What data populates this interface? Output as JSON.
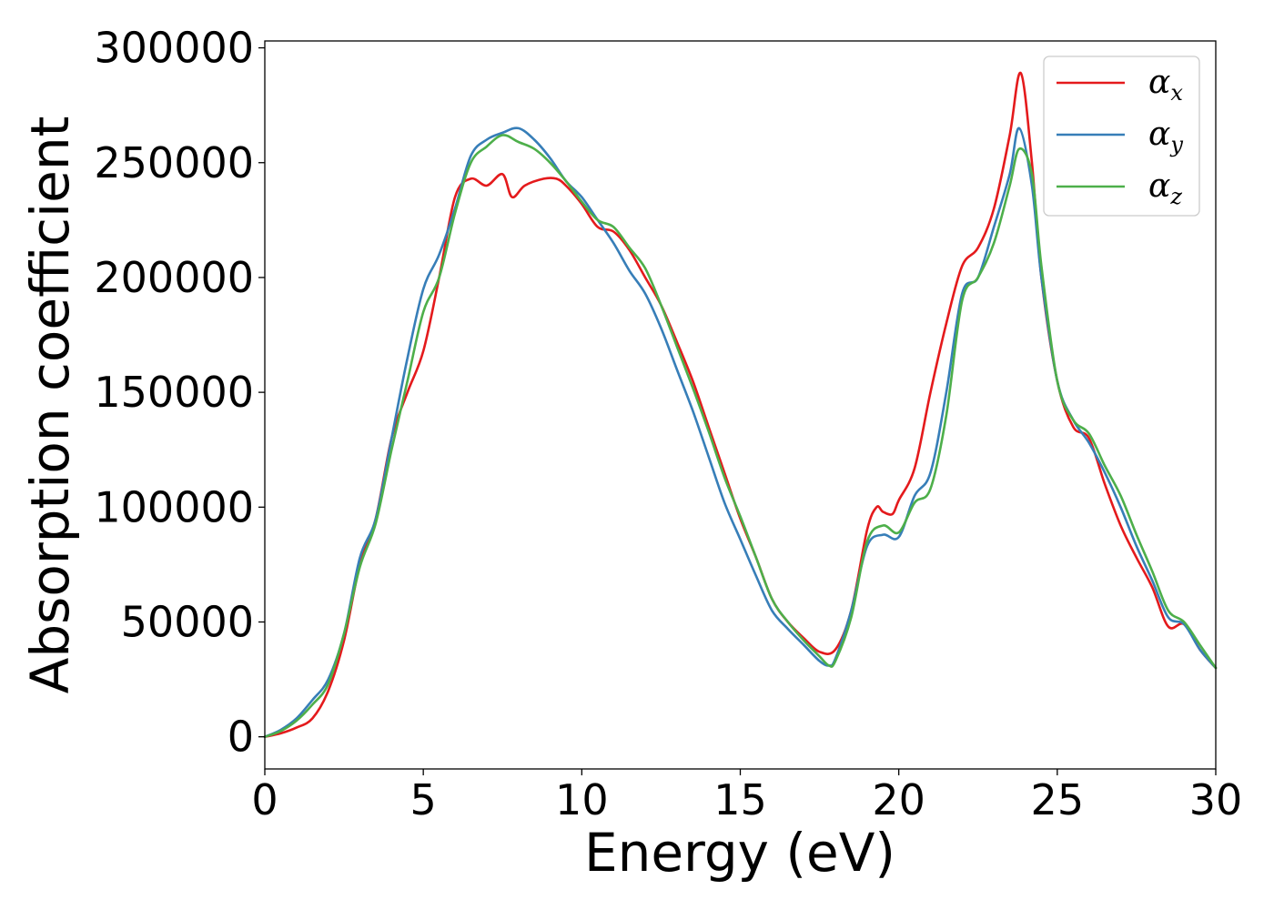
{
  "chart_data": {
    "type": "line",
    "xlabel": "Energy (eV)",
    "ylabel": "Absorption coefficient",
    "xlim": [
      0,
      30
    ],
    "ylim": [
      -14000,
      303000
    ],
    "xticks": [
      0,
      5,
      10,
      15,
      20,
      25,
      30
    ],
    "yticks": [
      0,
      50000,
      100000,
      150000,
      200000,
      250000,
      300000
    ],
    "grid": false,
    "legend_position": "top-right",
    "series": [
      {
        "name": "α_x",
        "symbol": "α",
        "subscript": "x",
        "color": "#e41a1c",
        "x": [
          0,
          0.5,
          1,
          1.5,
          2,
          2.5,
          3,
          3.5,
          4,
          4.5,
          5,
          5.5,
          6,
          6.5,
          7,
          7.5,
          7.8,
          8.2,
          8.8,
          9.2,
          9.5,
          10,
          10.5,
          11,
          11.5,
          12,
          12.5,
          13,
          13.5,
          14,
          14.5,
          15,
          15.5,
          16,
          16.5,
          17,
          17.5,
          18,
          18.5,
          19,
          19.3,
          19.5,
          19.8,
          20,
          20.5,
          21,
          21.5,
          22,
          22.5,
          23,
          23.5,
          23.85,
          24.2,
          24.5,
          25,
          25.5,
          26,
          26.5,
          27,
          27.5,
          28,
          28.5,
          29,
          29.5,
          30
        ],
        "y": [
          0,
          1500,
          4000,
          8000,
          20000,
          42000,
          75000,
          95000,
          130000,
          150000,
          168000,
          200000,
          235000,
          243000,
          240000,
          245000,
          235000,
          240000,
          243000,
          243000,
          240000,
          232000,
          222000,
          220000,
          212000,
          200000,
          188000,
          172000,
          155000,
          135000,
          115000,
          95000,
          78000,
          60000,
          50000,
          43000,
          37000,
          38000,
          55000,
          90000,
          100000,
          98000,
          97000,
          103000,
          117000,
          150000,
          180000,
          205000,
          213000,
          230000,
          262000,
          289000,
          250000,
          200000,
          155000,
          135000,
          130000,
          110000,
          92000,
          78000,
          65000,
          48000,
          49000,
          38000,
          30000
        ]
      },
      {
        "name": "α_y",
        "symbol": "α",
        "subscript": "y",
        "color": "#377eb8",
        "x": [
          0,
          0.5,
          1,
          1.5,
          2,
          2.5,
          3,
          3.5,
          4,
          4.5,
          5,
          5.5,
          6,
          6.5,
          7,
          7.5,
          8,
          8.5,
          9,
          9.5,
          10,
          10.5,
          11,
          11.5,
          12,
          12.5,
          13,
          13.5,
          14,
          14.5,
          15,
          15.5,
          16,
          16.5,
          17,
          17.5,
          17.8,
          18,
          18.5,
          19,
          19.5,
          20,
          20.5,
          21,
          21.5,
          22,
          22.5,
          23,
          23.5,
          23.8,
          24.2,
          24.5,
          25,
          25.5,
          26,
          26.5,
          27,
          27.5,
          28,
          28.5,
          29,
          29.5,
          30
        ],
        "y": [
          0,
          3000,
          8000,
          16000,
          25000,
          45000,
          78000,
          95000,
          130000,
          165000,
          195000,
          210000,
          230000,
          253000,
          260000,
          263000,
          265000,
          260000,
          252000,
          242000,
          235000,
          225000,
          215000,
          203000,
          193000,
          178000,
          160000,
          142000,
          122000,
          102000,
          86000,
          70000,
          55000,
          47000,
          40000,
          33000,
          31000,
          34000,
          55000,
          83000,
          88000,
          87000,
          105000,
          115000,
          150000,
          193000,
          200000,
          222000,
          245000,
          265000,
          240000,
          200000,
          155000,
          138000,
          128000,
          115000,
          100000,
          83000,
          68000,
          52000,
          49000,
          38000,
          30000
        ]
      },
      {
        "name": "α_z",
        "symbol": "α",
        "subscript": "z",
        "color": "#4daf4a",
        "x": [
          0,
          0.5,
          1,
          1.5,
          2,
          2.5,
          3,
          3.5,
          4,
          4.5,
          5,
          5.5,
          6,
          6.5,
          7,
          7.5,
          8,
          8.5,
          9,
          9.5,
          10,
          10.5,
          11,
          11.5,
          12,
          12.5,
          13,
          13.5,
          14,
          14.5,
          15,
          15.5,
          16,
          16.5,
          17,
          17.5,
          17.8,
          18,
          18.5,
          19,
          19.5,
          20,
          20.5,
          21,
          21.5,
          22,
          22.5,
          23,
          23.5,
          23.8,
          24.2,
          24.5,
          25,
          25.5,
          26,
          26.5,
          27,
          27.5,
          28,
          28.5,
          29,
          29.5,
          30
        ],
        "y": [
          0,
          2500,
          7000,
          14000,
          23000,
          45000,
          74000,
          93000,
          125000,
          155000,
          185000,
          200000,
          228000,
          250000,
          257000,
          262000,
          259000,
          256000,
          250000,
          242000,
          233000,
          225000,
          222000,
          213000,
          204000,
          188000,
          170000,
          152000,
          133000,
          113000,
          96000,
          78000,
          60000,
          50000,
          42000,
          35000,
          31000,
          33000,
          52000,
          85000,
          92000,
          89000,
          102000,
          108000,
          140000,
          190000,
          200000,
          215000,
          240000,
          256000,
          245000,
          205000,
          155000,
          138000,
          132000,
          118000,
          105000,
          88000,
          72000,
          55000,
          50000,
          40000,
          30000
        ]
      }
    ]
  }
}
